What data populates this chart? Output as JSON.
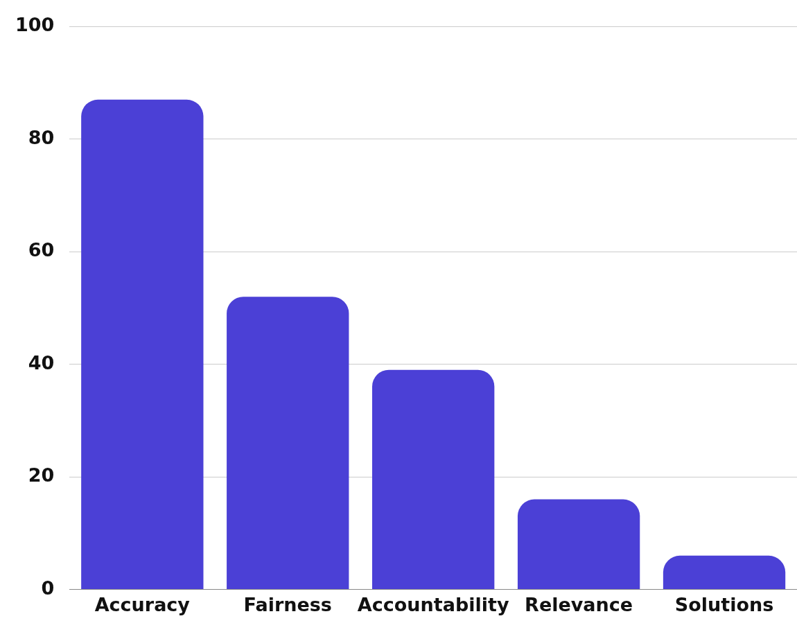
{
  "chart_data": {
    "type": "bar",
    "categories": [
      "Accuracy",
      "Fairness",
      "Accountability",
      "Relevance",
      "Solutions"
    ],
    "values": [
      87,
      52,
      39,
      16,
      6
    ],
    "color": "#4b40d6",
    "ylim": [
      0,
      100
    ],
    "yticks": [
      0,
      20,
      40,
      60,
      80,
      100
    ],
    "grid": "y"
  }
}
